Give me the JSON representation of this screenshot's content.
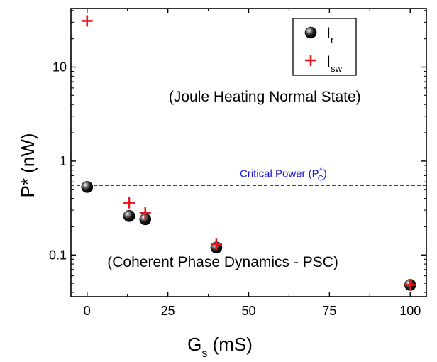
{
  "chart_data": {
    "type": "scatter",
    "title": "",
    "xlabel": "G",
    "xlabel_sub": "s",
    "xlabel_unit": " (mS)",
    "ylabel": "P* (nW)",
    "xlim": [
      -5,
      105
    ],
    "ylim": [
      0.036,
      42
    ],
    "y_scale": "log",
    "x_ticks": [
      0,
      25,
      50,
      75,
      100
    ],
    "x_tick_labels": [
      "0",
      "25",
      "50",
      "75",
      "100"
    ],
    "y_ticks": [
      0.1,
      1,
      10
    ],
    "y_tick_labels": [
      "0.1",
      "1",
      "10"
    ],
    "series": [
      {
        "name": "I",
        "name_sub": "r",
        "marker": "sphere",
        "color": "#000000",
        "x": [
          0,
          13,
          18,
          40,
          100
        ],
        "y": [
          0.53,
          0.26,
          0.24,
          0.12,
          0.048
        ]
      },
      {
        "name": "I",
        "name_sub": "sw",
        "marker": "plus",
        "color": "#e8151b",
        "x": [
          0,
          13,
          18,
          40,
          100
        ],
        "y": [
          31,
          0.36,
          0.28,
          0.13,
          0.048
        ]
      }
    ],
    "reference_line": {
      "y": 0.55,
      "style": "dashed",
      "color": "#1a1acc",
      "label": "Critical Power (P",
      "label_sup": "*",
      "label_sub": "C",
      "label_close": ")"
    },
    "annotations": [
      {
        "text": "(Joule Heating Normal State)",
        "x": 55,
        "y": 4.3
      },
      {
        "text": "(Coherent Phase Dynamics - PSC)",
        "x": 42,
        "y": 0.075
      }
    ],
    "legend": "top-right",
    "grid": false
  }
}
